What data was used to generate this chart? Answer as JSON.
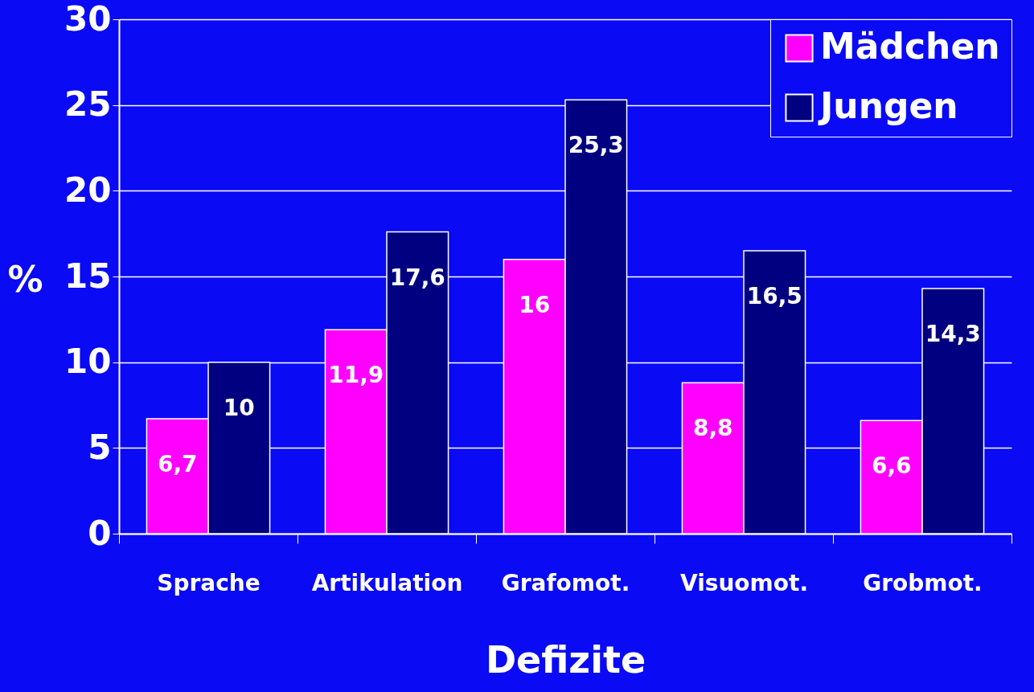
{
  "chart_data": {
    "type": "bar",
    "xlabel": "Defizite",
    "ylabel": "%",
    "categories": [
      "Sprache",
      "Artikulation",
      "Grafomot.",
      "Visuomot.",
      "Grobmot."
    ],
    "series": [
      {
        "name": "Mädchen",
        "color": "#ff00ff",
        "values": [
          6.7,
          11.9,
          16,
          8.8,
          6.6
        ],
        "value_labels": [
          "6,7",
          "11,9",
          "16",
          "8,8",
          "6,6"
        ]
      },
      {
        "name": "Jungen",
        "color": "#000080",
        "values": [
          10,
          17.6,
          25.3,
          16.5,
          14.3
        ],
        "value_labels": [
          "10",
          "17,6",
          "25,3",
          "16,5",
          "14,3"
        ]
      }
    ],
    "ylim": [
      0,
      30
    ],
    "yticks": [
      0,
      5,
      10,
      15,
      20,
      25,
      30
    ],
    "grid": "y",
    "legend": "top right"
  }
}
